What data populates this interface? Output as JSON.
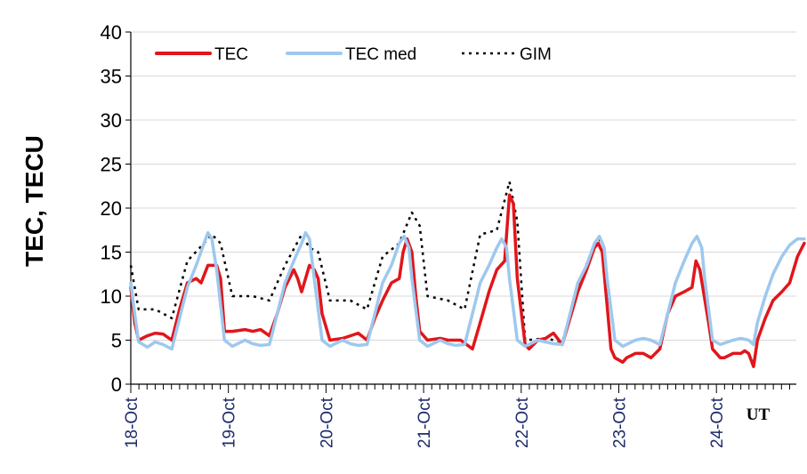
{
  "chart_data": {
    "type": "line",
    "ylabel": "TEC, TECU",
    "xlabel_extra": "UT",
    "ylim": [
      0,
      40
    ],
    "yticks": [
      "0",
      "5",
      "10",
      "15",
      "20",
      "25",
      "30",
      "35",
      "40"
    ],
    "xlim": [
      0,
      7
    ],
    "x_tick_labels": [
      "18-Oct",
      "19-Oct",
      "20-Oct",
      "21-Oct",
      "22-Oct",
      "23-Oct",
      "24-Oct"
    ],
    "minor_ticks_per_day": 12,
    "grid": "horizontal",
    "legend_position": "top-left",
    "series": [
      {
        "name": "TEC",
        "color": "#e0161b",
        "style": "solid-thick",
        "points": [
          [
            0.0,
            11.0
          ],
          [
            0.04,
            7.0
          ],
          [
            0.08,
            5.0
          ],
          [
            0.17,
            5.5
          ],
          [
            0.25,
            5.8
          ],
          [
            0.33,
            5.7
          ],
          [
            0.42,
            5.0
          ],
          [
            0.5,
            8.5
          ],
          [
            0.58,
            11.5
          ],
          [
            0.67,
            12.0
          ],
          [
            0.72,
            11.5
          ],
          [
            0.79,
            13.5
          ],
          [
            0.88,
            13.5
          ],
          [
            0.92,
            12.0
          ],
          [
            0.96,
            6.0
          ],
          [
            1.04,
            6.0
          ],
          [
            1.17,
            6.2
          ],
          [
            1.25,
            6.0
          ],
          [
            1.33,
            6.2
          ],
          [
            1.42,
            5.5
          ],
          [
            1.5,
            8.0
          ],
          [
            1.58,
            11.0
          ],
          [
            1.67,
            13.0
          ],
          [
            1.71,
            12.0
          ],
          [
            1.75,
            10.5
          ],
          [
            1.83,
            13.5
          ],
          [
            1.88,
            13.0
          ],
          [
            1.92,
            12.0
          ],
          [
            1.96,
            8.0
          ],
          [
            2.04,
            5.0
          ],
          [
            2.17,
            5.2
          ],
          [
            2.25,
            5.5
          ],
          [
            2.33,
            5.8
          ],
          [
            2.42,
            5.0
          ],
          [
            2.5,
            7.5
          ],
          [
            2.58,
            9.5
          ],
          [
            2.67,
            11.5
          ],
          [
            2.75,
            12.0
          ],
          [
            2.79,
            15.0
          ],
          [
            2.83,
            16.5
          ],
          [
            2.88,
            15.0
          ],
          [
            2.92,
            10.0
          ],
          [
            2.96,
            6.0
          ],
          [
            3.04,
            5.0
          ],
          [
            3.17,
            5.2
          ],
          [
            3.25,
            5.0
          ],
          [
            3.38,
            5.0
          ],
          [
            3.5,
            4.0
          ],
          [
            3.58,
            7.0
          ],
          [
            3.67,
            10.5
          ],
          [
            3.75,
            13.0
          ],
          [
            3.83,
            14.0
          ],
          [
            3.88,
            21.5
          ],
          [
            3.92,
            20.5
          ],
          [
            3.96,
            12.0
          ],
          [
            4.04,
            4.5
          ],
          [
            4.08,
            4.0
          ],
          [
            4.17,
            5.0
          ],
          [
            4.25,
            5.2
          ],
          [
            4.33,
            5.8
          ],
          [
            4.42,
            4.5
          ],
          [
            4.5,
            7.5
          ],
          [
            4.58,
            10.5
          ],
          [
            4.67,
            13.0
          ],
          [
            4.75,
            15.5
          ],
          [
            4.79,
            16.0
          ],
          [
            4.83,
            15.0
          ],
          [
            4.88,
            9.0
          ],
          [
            4.92,
            4.0
          ],
          [
            4.96,
            3.0
          ],
          [
            5.04,
            2.5
          ],
          [
            5.08,
            3.0
          ],
          [
            5.17,
            3.5
          ],
          [
            5.25,
            3.5
          ],
          [
            5.33,
            3.0
          ],
          [
            5.42,
            4.0
          ],
          [
            5.5,
            8.0
          ],
          [
            5.58,
            10.0
          ],
          [
            5.67,
            10.5
          ],
          [
            5.75,
            11.0
          ],
          [
            5.79,
            14.0
          ],
          [
            5.83,
            13.0
          ],
          [
            5.92,
            7.0
          ],
          [
            5.96,
            4.0
          ],
          [
            6.04,
            3.0
          ],
          [
            6.08,
            3.0
          ],
          [
            6.17,
            3.5
          ],
          [
            6.25,
            3.5
          ],
          [
            6.29,
            3.8
          ],
          [
            6.33,
            3.5
          ],
          [
            6.38,
            2.0
          ],
          [
            6.42,
            5.0
          ],
          [
            6.5,
            7.5
          ],
          [
            6.58,
            9.5
          ],
          [
            6.67,
            10.5
          ],
          [
            6.75,
            11.5
          ],
          [
            6.83,
            14.5
          ],
          [
            6.9,
            16.0
          ]
        ]
      },
      {
        "name": "TEC med",
        "color": "#9ec8ee",
        "style": "solid-thick",
        "points": [
          [
            0.0,
            11.5
          ],
          [
            0.04,
            8.0
          ],
          [
            0.08,
            4.8
          ],
          [
            0.17,
            4.2
          ],
          [
            0.25,
            4.8
          ],
          [
            0.33,
            4.5
          ],
          [
            0.42,
            4.0
          ],
          [
            0.5,
            7.5
          ],
          [
            0.58,
            11.0
          ],
          [
            0.67,
            13.5
          ],
          [
            0.75,
            16.0
          ],
          [
            0.79,
            17.2
          ],
          [
            0.83,
            16.5
          ],
          [
            0.88,
            13.0
          ],
          [
            0.96,
            5.0
          ],
          [
            1.04,
            4.3
          ],
          [
            1.17,
            5.0
          ],
          [
            1.25,
            4.6
          ],
          [
            1.33,
            4.4
          ],
          [
            1.42,
            4.5
          ],
          [
            1.5,
            8.0
          ],
          [
            1.58,
            11.5
          ],
          [
            1.67,
            14.0
          ],
          [
            1.75,
            16.0
          ],
          [
            1.79,
            17.2
          ],
          [
            1.83,
            16.5
          ],
          [
            1.88,
            12.0
          ],
          [
            1.96,
            5.0
          ],
          [
            2.04,
            4.3
          ],
          [
            2.17,
            5.0
          ],
          [
            2.25,
            4.6
          ],
          [
            2.33,
            4.4
          ],
          [
            2.42,
            4.5
          ],
          [
            2.5,
            8.0
          ],
          [
            2.58,
            11.5
          ],
          [
            2.67,
            13.5
          ],
          [
            2.75,
            16.0
          ],
          [
            2.8,
            16.8
          ],
          [
            2.85,
            15.5
          ],
          [
            2.88,
            12.0
          ],
          [
            2.96,
            5.0
          ],
          [
            3.04,
            4.3
          ],
          [
            3.17,
            5.0
          ],
          [
            3.25,
            4.6
          ],
          [
            3.33,
            4.4
          ],
          [
            3.42,
            4.5
          ],
          [
            3.5,
            8.0
          ],
          [
            3.58,
            11.5
          ],
          [
            3.67,
            13.5
          ],
          [
            3.75,
            15.5
          ],
          [
            3.8,
            16.5
          ],
          [
            3.85,
            15.5
          ],
          [
            3.88,
            12.0
          ],
          [
            3.96,
            5.0
          ],
          [
            4.04,
            4.3
          ],
          [
            4.17,
            5.0
          ],
          [
            4.25,
            4.8
          ],
          [
            4.33,
            4.6
          ],
          [
            4.42,
            4.5
          ],
          [
            4.5,
            8.0
          ],
          [
            4.58,
            11.5
          ],
          [
            4.67,
            13.5
          ],
          [
            4.75,
            16.0
          ],
          [
            4.8,
            16.8
          ],
          [
            4.85,
            15.5
          ],
          [
            4.88,
            12.0
          ],
          [
            4.96,
            5.0
          ],
          [
            5.04,
            4.3
          ],
          [
            5.17,
            5.0
          ],
          [
            5.25,
            5.2
          ],
          [
            5.33,
            5.0
          ],
          [
            5.42,
            4.5
          ],
          [
            5.5,
            8.0
          ],
          [
            5.58,
            11.5
          ],
          [
            5.67,
            14.0
          ],
          [
            5.75,
            16.0
          ],
          [
            5.8,
            16.8
          ],
          [
            5.85,
            15.5
          ],
          [
            5.88,
            12.0
          ],
          [
            5.96,
            5.0
          ],
          [
            6.04,
            4.5
          ],
          [
            6.17,
            5.0
          ],
          [
            6.25,
            5.2
          ],
          [
            6.33,
            5.0
          ],
          [
            6.38,
            4.5
          ],
          [
            6.42,
            7.0
          ],
          [
            6.5,
            10.0
          ],
          [
            6.58,
            12.5
          ],
          [
            6.67,
            14.5
          ],
          [
            6.75,
            15.8
          ],
          [
            6.83,
            16.5
          ],
          [
            6.9,
            16.5
          ]
        ]
      },
      {
        "name": "GIM",
        "color": "#000000",
        "style": "dotted",
        "points": [
          [
            0.0,
            13.5
          ],
          [
            0.08,
            8.5
          ],
          [
            0.25,
            8.5
          ],
          [
            0.42,
            7.5
          ],
          [
            0.58,
            14.0
          ],
          [
            0.75,
            16.0
          ],
          [
            0.83,
            17.0
          ],
          [
            0.92,
            16.0
          ],
          [
            1.04,
            10.0
          ],
          [
            1.25,
            10.0
          ],
          [
            1.42,
            9.5
          ],
          [
            1.58,
            13.5
          ],
          [
            1.75,
            17.0
          ],
          [
            1.83,
            15.5
          ],
          [
            1.92,
            15.0
          ],
          [
            2.04,
            9.5
          ],
          [
            2.25,
            9.5
          ],
          [
            2.42,
            8.5
          ],
          [
            2.58,
            14.5
          ],
          [
            2.75,
            16.0
          ],
          [
            2.88,
            19.5
          ],
          [
            2.96,
            18.0
          ],
          [
            3.04,
            10.0
          ],
          [
            3.25,
            9.5
          ],
          [
            3.42,
            8.5
          ],
          [
            3.58,
            17.0
          ],
          [
            3.75,
            17.5
          ],
          [
            3.88,
            23.0
          ],
          [
            3.96,
            18.5
          ],
          [
            4.04,
            5.0
          ],
          [
            4.25,
            5.2
          ],
          [
            4.42,
            4.8
          ],
          [
            4.58,
            11.0
          ],
          [
            4.75,
            16.0
          ],
          [
            4.83,
            16.5
          ]
        ]
      }
    ]
  }
}
